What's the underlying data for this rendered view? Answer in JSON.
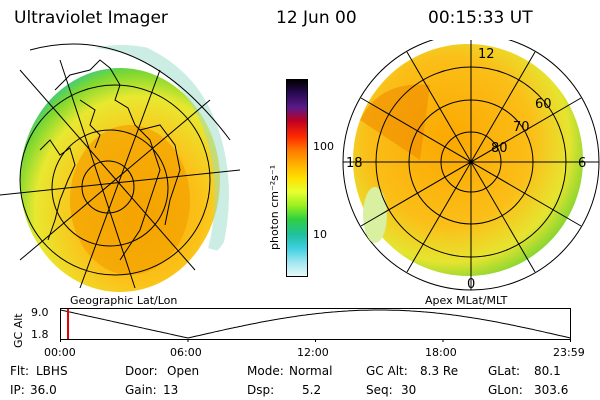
{
  "header": {
    "title": "Ultraviolet Imager",
    "date": "12 Jun 00",
    "time": "00:15:33 UT"
  },
  "colorbar": {
    "unit_label": "photon cm⁻²s⁻¹",
    "ticks": [
      "100",
      "10"
    ],
    "colors": [
      "#000000",
      "#2a0a55",
      "#5a1a8a",
      "#c00020",
      "#ff2a00",
      "#ff7a00",
      "#ffb000",
      "#ffe000",
      "#e8ff30",
      "#9af020",
      "#30d040",
      "#20c0a0",
      "#40d0e0",
      "#a0e8f0",
      "#e8f8f8"
    ]
  },
  "left_map": {
    "caption": "Geographic Lat/Lon"
  },
  "right_map": {
    "caption": "Apex MLat/MLT",
    "mlt_labels": {
      "top": "12",
      "right": "6",
      "bottom": "0",
      "left": "18"
    },
    "lat_labels": [
      "60",
      "70",
      "80"
    ]
  },
  "timeline": {
    "axis_label": "GC Alt",
    "y_max": "9.0",
    "y_min": "1.8",
    "x_ticks": [
      "00:00",
      "06:00",
      "12:00",
      "18:00",
      "23:59"
    ],
    "current_time_hours": 0.26
  },
  "info": {
    "flt_label": "Flt:",
    "flt_value": "LBHS",
    "ip_label": "IP:",
    "ip_value": "36.0",
    "door_label": "Door:",
    "door_value": "Open",
    "gain_label": "Gain:",
    "gain_value": "13",
    "mode_label": "Mode:",
    "mode_value": "Normal",
    "dsp_label": "Dsp:",
    "dsp_value": "5.2",
    "gcalt_label": "GC Alt:",
    "gcalt_value": "8.3 Re",
    "seq_label": "Seq:",
    "seq_value": "30",
    "glat_label": "GLat:",
    "glat_value": "80.1",
    "glon_label": "GLon:",
    "glon_value": "303.6"
  }
}
